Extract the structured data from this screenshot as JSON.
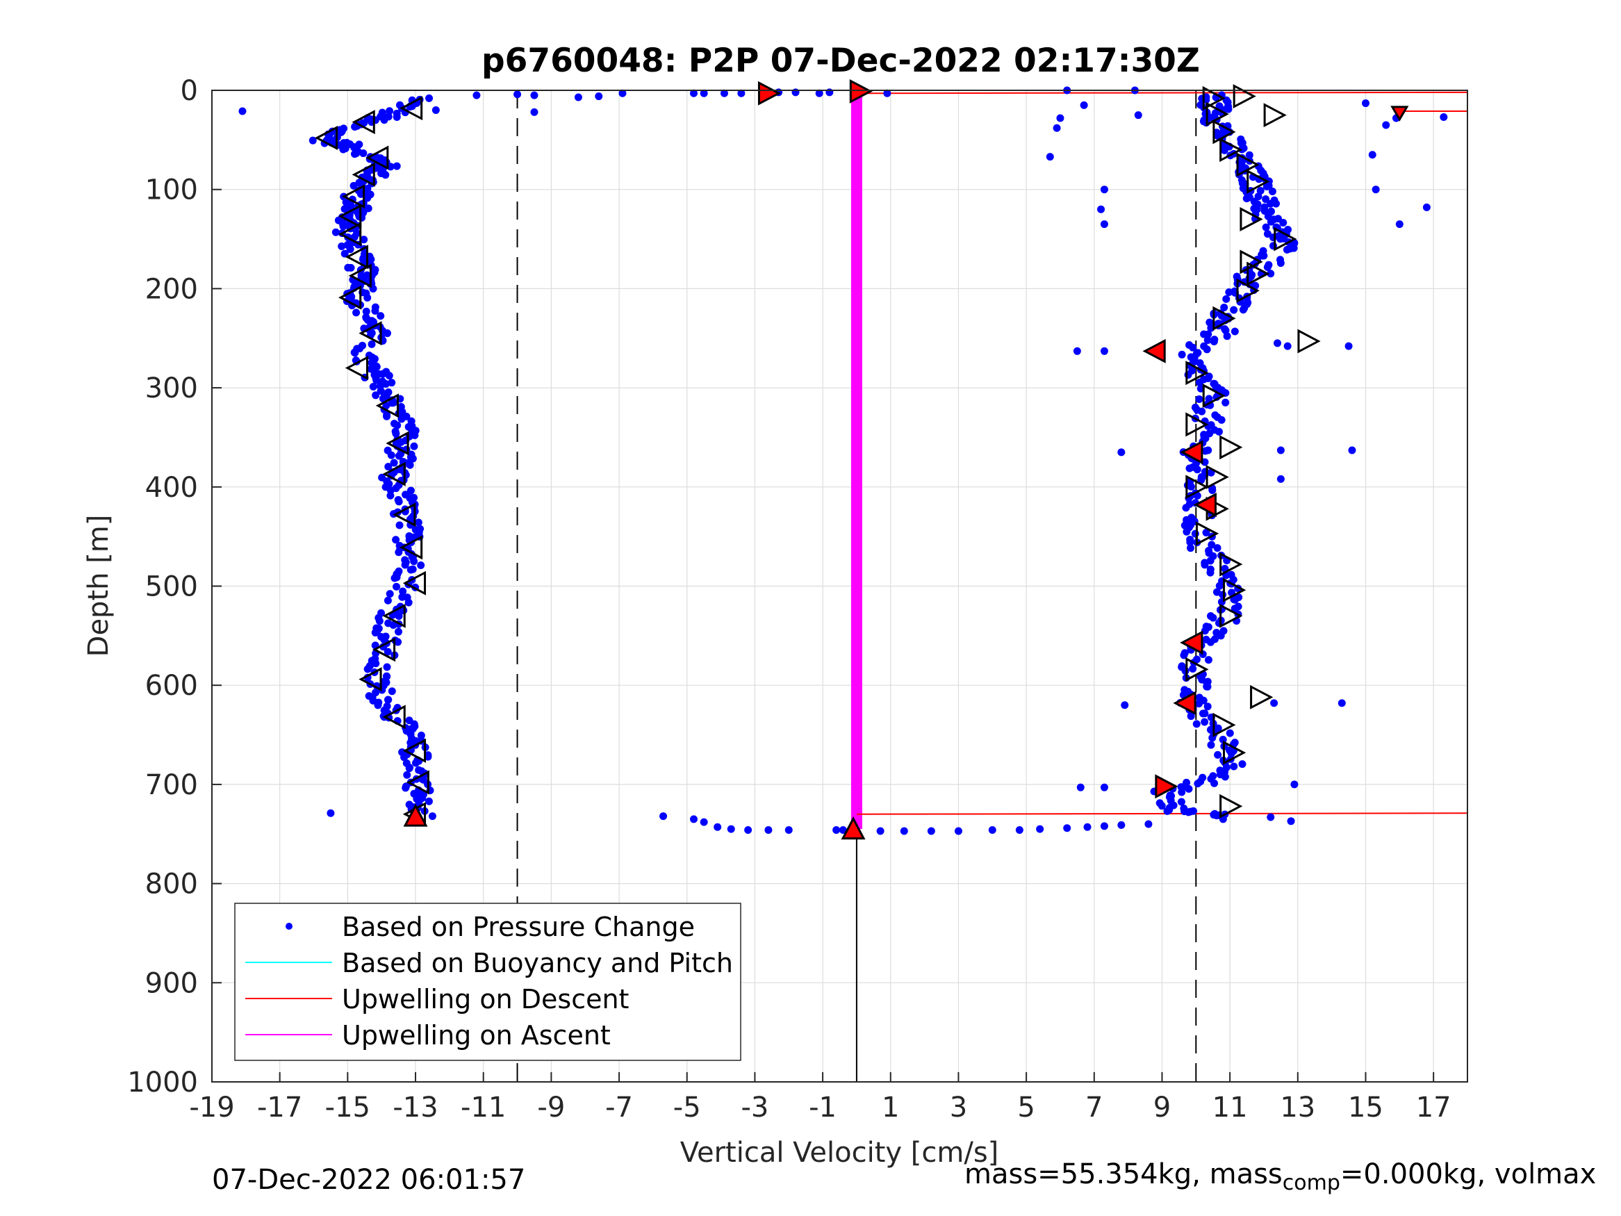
{
  "chart_data": {
    "type": "scatter",
    "title": "p6760048: P2P 07-Dec-2022 02:17:30Z",
    "xlabel": "Vertical Velocity [cm/s]",
    "ylabel": "Depth [m]",
    "xlim": [
      -19,
      18
    ],
    "ylim": [
      1000,
      0
    ],
    "y_reversed": true,
    "xticks": [
      -19,
      -17,
      -15,
      -13,
      -11,
      -9,
      -7,
      -5,
      -3,
      -1,
      1,
      3,
      5,
      7,
      9,
      11,
      13,
      15,
      17
    ],
    "yticks": [
      0,
      100,
      200,
      300,
      400,
      500,
      600,
      700,
      800,
      900,
      1000
    ],
    "grid": true,
    "legend_position": "bottom-left",
    "legend": [
      {
        "label": "Based on Pressure Change",
        "style": "dot",
        "color": "#0000ff"
      },
      {
        "label": "Based on Buoyancy and Pitch",
        "style": "line",
        "color": "#00ffff"
      },
      {
        "label": "Upwelling on Descent",
        "style": "line",
        "color": "#ff0000"
      },
      {
        "label": "Upwelling on Ascent",
        "style": "line",
        "color": "#ff00ff"
      }
    ],
    "reference_lines": {
      "dashed_x": [
        -10,
        10
      ],
      "solid_vertical": {
        "x": 0,
        "depth_from": 745,
        "depth_to": 1000
      }
    },
    "series": [
      {
        "name": "Based on Pressure Change",
        "color": "#0000ff",
        "descent_profile": [
          [
            -13.0,
            10
          ],
          [
            -13.8,
            25
          ],
          [
            -14.8,
            35
          ],
          [
            -15.7,
            50
          ],
          [
            -15.0,
            55
          ],
          [
            -14.2,
            68
          ],
          [
            -13.9,
            75
          ],
          [
            -14.2,
            85
          ],
          [
            -14.5,
            95
          ],
          [
            -14.8,
            110
          ],
          [
            -14.7,
            120
          ],
          [
            -14.9,
            130
          ],
          [
            -15.0,
            140
          ],
          [
            -14.8,
            160
          ],
          [
            -14.6,
            180
          ],
          [
            -14.4,
            195
          ],
          [
            -14.7,
            210
          ],
          [
            -14.3,
            230
          ],
          [
            -14.2,
            245
          ],
          [
            -14.6,
            270
          ],
          [
            -14.2,
            285
          ],
          [
            -13.9,
            300
          ],
          [
            -13.7,
            320
          ],
          [
            -13.3,
            340
          ],
          [
            -13.4,
            360
          ],
          [
            -13.5,
            375
          ],
          [
            -13.7,
            390
          ],
          [
            -13.4,
            410
          ],
          [
            -13.3,
            430
          ],
          [
            -13.2,
            450
          ],
          [
            -13.1,
            470
          ],
          [
            -13.2,
            490
          ],
          [
            -13.5,
            520
          ],
          [
            -13.8,
            540
          ],
          [
            -13.9,
            560
          ],
          [
            -14.2,
            590
          ],
          [
            -14.0,
            610
          ],
          [
            -13.6,
            630
          ],
          [
            -13.2,
            650
          ],
          [
            -13.0,
            670
          ],
          [
            -12.9,
            690
          ],
          [
            -12.9,
            710
          ],
          [
            -13.0,
            728
          ]
        ],
        "ascent_profile": [
          [
            10.5,
            5
          ],
          [
            10.6,
            20
          ],
          [
            10.7,
            35
          ],
          [
            11.0,
            55
          ],
          [
            11.4,
            75
          ],
          [
            11.7,
            90
          ],
          [
            11.9,
            105
          ],
          [
            12.0,
            120
          ],
          [
            12.3,
            140
          ],
          [
            12.6,
            155
          ],
          [
            12.1,
            175
          ],
          [
            11.6,
            190
          ],
          [
            11.2,
            210
          ],
          [
            10.8,
            228
          ],
          [
            10.7,
            245
          ],
          [
            9.6,
            268
          ],
          [
            10.2,
            290
          ],
          [
            10.5,
            310
          ],
          [
            10.3,
            335
          ],
          [
            10.1,
            360
          ],
          [
            10.0,
            385
          ],
          [
            10.1,
            410
          ],
          [
            10.0,
            440
          ],
          [
            10.3,
            465
          ],
          [
            10.8,
            490
          ],
          [
            11.0,
            515
          ],
          [
            10.7,
            540
          ],
          [
            10.0,
            565
          ],
          [
            10.0,
            590
          ],
          [
            9.8,
            615
          ],
          [
            10.4,
            640
          ],
          [
            11.0,
            665
          ],
          [
            11.1,
            690
          ],
          [
            9.2,
            705
          ],
          [
            9.2,
            725
          ],
          [
            11.0,
            732
          ]
        ],
        "surface_points": [
          [
            -18.1,
            21
          ],
          [
            -13.1,
            10
          ],
          [
            -12.6,
            8
          ],
          [
            -12.4,
            20
          ],
          [
            -11.2,
            5
          ],
          [
            -10.0,
            4
          ],
          [
            -9.5,
            5
          ],
          [
            -9.5,
            22
          ],
          [
            -8.2,
            7
          ],
          [
            -7.6,
            6
          ],
          [
            -6.9,
            3
          ],
          [
            -4.8,
            3
          ],
          [
            -4.5,
            3
          ],
          [
            -3.9,
            3
          ],
          [
            -3.4,
            3
          ],
          [
            -2.3,
            2
          ],
          [
            -1.8,
            2
          ],
          [
            -1.1,
            3
          ],
          [
            -0.8,
            2
          ],
          [
            0.9,
            3
          ],
          [
            6.2,
            0
          ],
          [
            6.7,
            15
          ],
          [
            5.9,
            38
          ],
          [
            6.0,
            28
          ],
          [
            5.7,
            67
          ],
          [
            8.3,
            25
          ],
          [
            8.2,
            0
          ],
          [
            15.0,
            13
          ],
          [
            15.2,
            65
          ],
          [
            15.3,
            100
          ],
          [
            15.6,
            35
          ],
          [
            15.9,
            28
          ],
          [
            16.0,
            135
          ],
          [
            16.8,
            118
          ],
          [
            17.3,
            27
          ]
        ],
        "outliers": [
          [
            7.3,
            100
          ],
          [
            7.2,
            120
          ],
          [
            7.3,
            135
          ],
          [
            6.5,
            263
          ],
          [
            7.3,
            263
          ],
          [
            7.8,
            365
          ],
          [
            12.4,
            255
          ],
          [
            12.7,
            258
          ],
          [
            14.5,
            258
          ],
          [
            12.5,
            363
          ],
          [
            14.6,
            363
          ],
          [
            12.5,
            392
          ],
          [
            12.3,
            618
          ],
          [
            14.3,
            618
          ],
          [
            7.9,
            620
          ],
          [
            6.6,
            703
          ],
          [
            7.3,
            703
          ],
          [
            12.9,
            700
          ],
          [
            -15.5,
            729
          ],
          [
            -12.5,
            732
          ],
          [
            12.8,
            737
          ]
        ],
        "bottom_turn": [
          [
            -5.7,
            732
          ],
          [
            -4.8,
            735
          ],
          [
            -4.5,
            738
          ],
          [
            -4.1,
            743
          ],
          [
            -3.7,
            745
          ],
          [
            -3.2,
            746
          ],
          [
            -2.6,
            746
          ],
          [
            -2.0,
            746
          ],
          [
            -0.6,
            746
          ],
          [
            -0.4,
            746
          ],
          [
            0.7,
            747
          ],
          [
            1.4,
            747
          ],
          [
            2.2,
            747
          ],
          [
            3.0,
            747
          ],
          [
            4.0,
            746
          ],
          [
            4.8,
            746
          ],
          [
            5.4,
            745
          ],
          [
            6.2,
            744
          ],
          [
            6.8,
            743
          ],
          [
            7.3,
            742
          ],
          [
            7.8,
            741
          ],
          [
            8.6,
            740
          ],
          [
            10.8,
            735
          ],
          [
            12.2,
            733
          ]
        ]
      },
      {
        "name": "Upwelling on Descent",
        "color": "#ff0000",
        "segments": [
          {
            "x0": 0,
            "x1": 18,
            "depth0": 3,
            "depth1": 2
          },
          {
            "x0": 16,
            "x1": 18,
            "depth0": 21,
            "depth1": 21
          },
          {
            "x0": 0,
            "x1": 18,
            "depth0": 730,
            "depth1": 729
          }
        ]
      },
      {
        "name": "Upwelling on Ascent",
        "color": "#ff00ff",
        "segments": [
          {
            "x": 0,
            "depth_from": 3,
            "depth_to": 745
          }
        ]
      }
    ],
    "open_triangles": [
      {
        "x": -13.1,
        "y": 18,
        "dir": "left"
      },
      {
        "x": -14.5,
        "y": 32,
        "dir": "left"
      },
      {
        "x": -15.6,
        "y": 48,
        "dir": "left"
      },
      {
        "x": -14.1,
        "y": 68,
        "dir": "left"
      },
      {
        "x": -14.5,
        "y": 85,
        "dir": "left"
      },
      {
        "x": -14.8,
        "y": 107,
        "dir": "left"
      },
      {
        "x": -14.9,
        "y": 127,
        "dir": "left"
      },
      {
        "x": -14.9,
        "y": 145,
        "dir": "left"
      },
      {
        "x": -14.7,
        "y": 168,
        "dir": "left"
      },
      {
        "x": -14.6,
        "y": 187,
        "dir": "left"
      },
      {
        "x": -14.9,
        "y": 209,
        "dir": "left"
      },
      {
        "x": -14.3,
        "y": 245,
        "dir": "left"
      },
      {
        "x": -14.7,
        "y": 280,
        "dir": "left"
      },
      {
        "x": -13.8,
        "y": 318,
        "dir": "left"
      },
      {
        "x": -13.5,
        "y": 356,
        "dir": "left"
      },
      {
        "x": -13.6,
        "y": 387,
        "dir": "left"
      },
      {
        "x": -13.3,
        "y": 428,
        "dir": "left"
      },
      {
        "x": -13.1,
        "y": 461,
        "dir": "left"
      },
      {
        "x": -13.0,
        "y": 497,
        "dir": "left"
      },
      {
        "x": -13.6,
        "y": 530,
        "dir": "left"
      },
      {
        "x": -13.9,
        "y": 564,
        "dir": "left"
      },
      {
        "x": -14.3,
        "y": 594,
        "dir": "left"
      },
      {
        "x": -13.6,
        "y": 632,
        "dir": "left"
      },
      {
        "x": -13.0,
        "y": 666,
        "dir": "left"
      },
      {
        "x": -12.9,
        "y": 698,
        "dir": "left"
      },
      {
        "x": -13.0,
        "y": 730,
        "dir": "left"
      },
      {
        "x": 10.5,
        "y": 8,
        "dir": "right"
      },
      {
        "x": 11.4,
        "y": 6,
        "dir": "right"
      },
      {
        "x": 10.6,
        "y": 24,
        "dir": "right"
      },
      {
        "x": 12.3,
        "y": 25,
        "dir": "right"
      },
      {
        "x": 10.8,
        "y": 42,
        "dir": "right"
      },
      {
        "x": 11.0,
        "y": 60,
        "dir": "right"
      },
      {
        "x": 11.5,
        "y": 75,
        "dir": "right"
      },
      {
        "x": 11.8,
        "y": 92,
        "dir": "right"
      },
      {
        "x": 11.6,
        "y": 130,
        "dir": "right"
      },
      {
        "x": 12.6,
        "y": 150,
        "dir": "right"
      },
      {
        "x": 11.6,
        "y": 173,
        "dir": "right"
      },
      {
        "x": 11.8,
        "y": 185,
        "dir": "right"
      },
      {
        "x": 11.5,
        "y": 202,
        "dir": "right"
      },
      {
        "x": 10.8,
        "y": 230,
        "dir": "right"
      },
      {
        "x": 13.3,
        "y": 253,
        "dir": "right"
      },
      {
        "x": 10.0,
        "y": 285,
        "dir": "right"
      },
      {
        "x": 10.5,
        "y": 308,
        "dir": "right"
      },
      {
        "x": 10.0,
        "y": 337,
        "dir": "right"
      },
      {
        "x": 11.0,
        "y": 360,
        "dir": "right"
      },
      {
        "x": 10.6,
        "y": 390,
        "dir": "right"
      },
      {
        "x": 10.0,
        "y": 400,
        "dir": "right"
      },
      {
        "x": 10.6,
        "y": 422,
        "dir": "right"
      },
      {
        "x": 10.3,
        "y": 447,
        "dir": "right"
      },
      {
        "x": 11.0,
        "y": 478,
        "dir": "right"
      },
      {
        "x": 11.1,
        "y": 504,
        "dir": "right"
      },
      {
        "x": 11.0,
        "y": 530,
        "dir": "right"
      },
      {
        "x": 10.0,
        "y": 584,
        "dir": "right"
      },
      {
        "x": 11.9,
        "y": 612,
        "dir": "right"
      },
      {
        "x": 10.8,
        "y": 640,
        "dir": "right"
      },
      {
        "x": 11.1,
        "y": 668,
        "dir": "right"
      },
      {
        "x": 11.0,
        "y": 722,
        "dir": "right"
      }
    ],
    "red_triangles": [
      {
        "x": -2.6,
        "y": 3,
        "dir": "right"
      },
      {
        "x": 0.1,
        "y": 1,
        "dir": "right"
      },
      {
        "x": 8.8,
        "y": 263,
        "dir": "left"
      },
      {
        "x": 9.9,
        "y": 365,
        "dir": "left"
      },
      {
        "x": 10.3,
        "y": 418,
        "dir": "left"
      },
      {
        "x": 9.9,
        "y": 557,
        "dir": "left"
      },
      {
        "x": 9.7,
        "y": 618,
        "dir": "left"
      },
      {
        "x": 9.1,
        "y": 702,
        "dir": "right"
      },
      {
        "x": -13.0,
        "y": 732,
        "dir": "up"
      },
      {
        "x": -0.1,
        "y": 745,
        "dir": "up"
      },
      {
        "x": 16.0,
        "y": 22,
        "dir": "down"
      }
    ]
  },
  "footer": {
    "timestamp": "07-Dec-2022 06:01:57",
    "mass_text": "mass=55.354kg, mass",
    "mass_sub": "comp",
    "mass_rest": "=0.000kg, volmax"
  }
}
